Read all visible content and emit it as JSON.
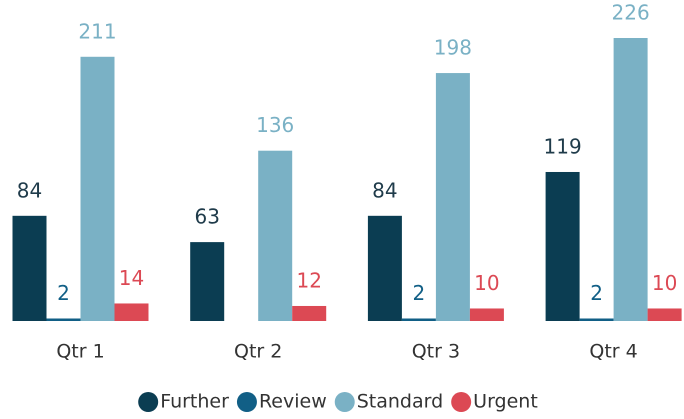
{
  "chart_data": {
    "type": "bar",
    "categories": [
      "Qtr 1",
      "Qtr 2",
      "Qtr 3",
      "Qtr 4"
    ],
    "series": [
      {
        "name": "Further",
        "color": "#0b3d52",
        "values": [
          84,
          63,
          84,
          119
        ]
      },
      {
        "name": "Review",
        "color": "#115f86",
        "values": [
          2,
          null,
          2,
          2
        ]
      },
      {
        "name": "Standard",
        "color": "#7ab1c5",
        "values": [
          211,
          136,
          198,
          226
        ]
      },
      {
        "name": "Urgent",
        "color": "#dc4954",
        "values": [
          14,
          12,
          10,
          10
        ]
      }
    ],
    "legend": "bottom"
  }
}
